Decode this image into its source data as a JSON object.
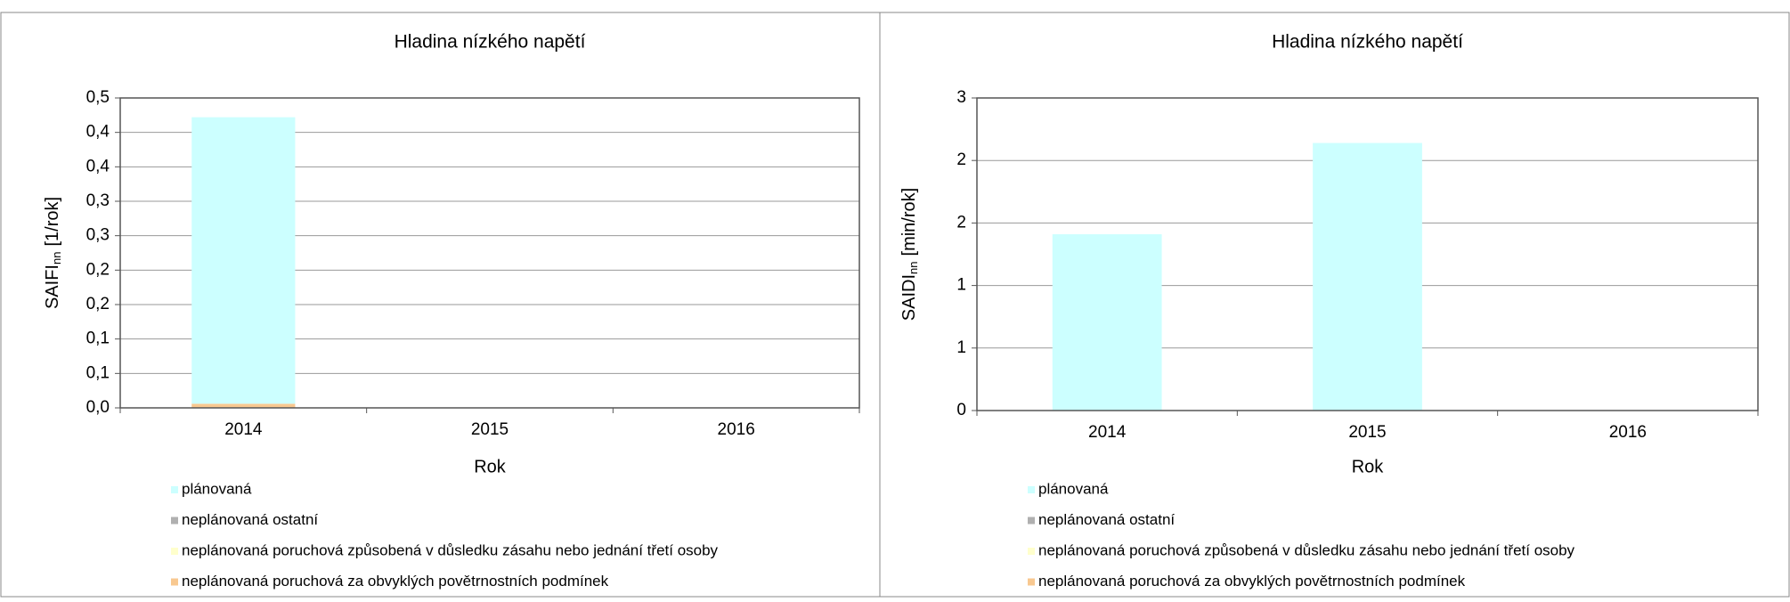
{
  "chart_data": [
    {
      "type": "bar",
      "stacked": true,
      "title": "Hladina nízkého napětí",
      "x_label": "Rok",
      "y_label": [
        "SAIFI",
        "nn",
        "[1/rok]"
      ],
      "categories": [
        "2014",
        "2015",
        "2016"
      ],
      "series": [
        {
          "name": "plánovaná",
          "color": "#ccffff",
          "values": [
            0.416,
            0,
            0
          ]
        },
        {
          "name": "neplánovaná ostatní",
          "color": "#b0b0b0",
          "values": [
            0,
            0,
            0
          ]
        },
        {
          "name": "neplánovaná poruchová způsobená v důsledku zásahu nebo jednání třetí osoby",
          "color": "#ffffcc",
          "values": [
            0,
            0,
            0
          ]
        },
        {
          "name": "neplánovaná poruchová za obvyklých povětrnostních podmínek",
          "color": "#f8c890",
          "values": [
            0.006,
            0,
            0
          ]
        }
      ],
      "ylim": [
        0,
        0.45
      ],
      "yticks": [
        {
          "value": 0,
          "label": "0,0"
        },
        {
          "value": 0.05,
          "label": "0,1"
        },
        {
          "value": 0.1,
          "label": "0,1"
        },
        {
          "value": 0.15,
          "label": "0,2"
        },
        {
          "value": 0.2,
          "label": "0,2"
        },
        {
          "value": 0.25,
          "label": "0,3"
        },
        {
          "value": 0.3,
          "label": "0,3"
        },
        {
          "value": 0.35,
          "label": "0,4"
        },
        {
          "value": 0.4,
          "label": "0,4"
        },
        {
          "value": 0.45,
          "label": "0,5"
        }
      ],
      "grid": true
    },
    {
      "type": "bar",
      "stacked": true,
      "title": "Hladina nízkého napětí",
      "x_label": "Rok",
      "y_label": [
        "SAIDI",
        "nn",
        "[min/rok]"
      ],
      "categories": [
        "2014",
        "2015",
        "2016"
      ],
      "series": [
        {
          "name": "plánovaná",
          "color": "#ccffff",
          "values": [
            1.41,
            2.14,
            0
          ]
        },
        {
          "name": "neplánovaná ostatní",
          "color": "#b0b0b0",
          "values": [
            0,
            0,
            0
          ]
        },
        {
          "name": "neplánovaná poruchová způsobená v důsledku zásahu nebo jednání třetí osoby",
          "color": "#ffffcc",
          "values": [
            0,
            0,
            0
          ]
        },
        {
          "name": "neplánovaná poruchová za obvyklých povětrnostních podmínek",
          "color": "#f8c890",
          "values": [
            0,
            0,
            0
          ]
        }
      ],
      "ylim": [
        0,
        2.5
      ],
      "yticks": [
        {
          "value": 0,
          "label": "0"
        },
        {
          "value": 0.5,
          "label": "1"
        },
        {
          "value": 1,
          "label": "1"
        },
        {
          "value": 1.5,
          "label": "2"
        },
        {
          "value": 2,
          "label": "2"
        },
        {
          "value": 2.5,
          "label": "3"
        }
      ],
      "grid": true
    }
  ]
}
